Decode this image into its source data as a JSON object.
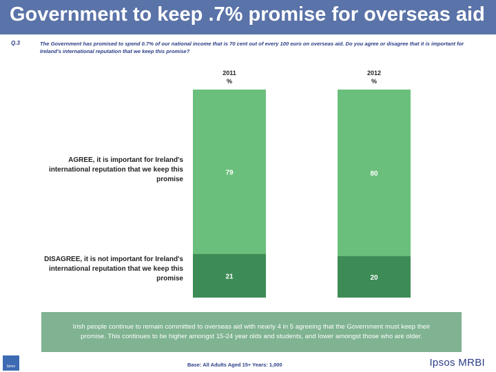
{
  "page": {
    "title": "Government to keep .7% promise for overseas aid",
    "question_number": "Q.3",
    "question_text": "The Government has promised to spend 0.7% of our national income that is 70 cent out of every 100 euro on overseas aid.  Do you agree or disagree that it is important for Ireland's international reputation that we  keep this promise?",
    "summary": "Irish people continue to remain committed to overseas aid with nearly 4 in 5 agreeing that the Government must keep their promise. This continues to be higher amongst 15-24 year olds and students, and lower amongst those who are older.",
    "base": "Base:  All Adults Aged 15+ Years: 1,000",
    "logo_label": "Ipsos",
    "brand": "Ipsos MRBI"
  },
  "chart_data": {
    "type": "bar",
    "stacked": true,
    "categories": [
      "2011",
      "2012"
    ],
    "unit": "%",
    "ylim": [
      0,
      100
    ],
    "series": [
      {
        "name": "AGREE, it is important for Ireland's international reputation that we keep this promise",
        "values": [
          79,
          80
        ],
        "color": "#6bbf7c"
      },
      {
        "name": "DISAGREE, it is not important for Ireland's international reputation that we keep this promise",
        "values": [
          21,
          20
        ],
        "color": "#3d8c56"
      }
    ],
    "labels_color": "#ffffff",
    "grid": false,
    "legend": "left row labels"
  }
}
